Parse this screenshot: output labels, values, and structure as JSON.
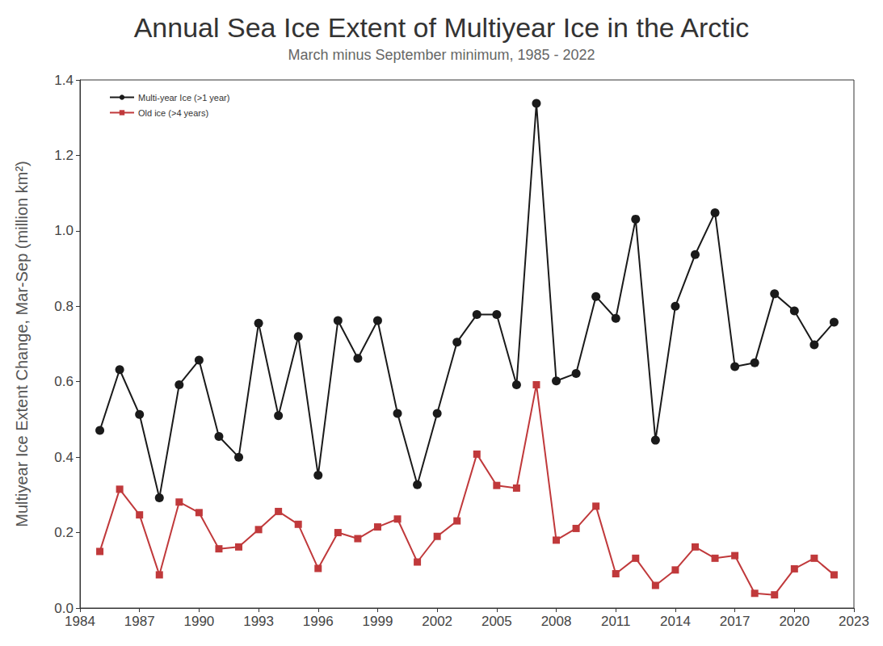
{
  "chart_data": {
    "type": "line",
    "title": "Annual Sea Ice Extent of Multiyear Ice in the Arctic",
    "subtitle": "March minus September minimum, 1985 - 2022",
    "y_label": "Multiyear Ice Extent Change, Mar-Sep (million km²)",
    "x": [
      1985,
      1986,
      1987,
      1988,
      1989,
      1990,
      1991,
      1992,
      1993,
      1994,
      1995,
      1996,
      1997,
      1998,
      1999,
      2000,
      2001,
      2002,
      2003,
      2004,
      2005,
      2006,
      2007,
      2008,
      2009,
      2010,
      2011,
      2012,
      2013,
      2014,
      2015,
      2016,
      2017,
      2018,
      2019,
      2020,
      2021,
      2022
    ],
    "series": [
      {
        "name": "Multi-year Ice (>1 year)",
        "color": "#1a1a1a",
        "marker": "circle",
        "line_style": "solid",
        "values": [
          0.471,
          0.632,
          0.513,
          0.292,
          0.592,
          0.657,
          0.455,
          0.4,
          0.755,
          0.51,
          0.72,
          0.352,
          0.762,
          0.662,
          0.762,
          0.516,
          0.327,
          0.516,
          0.705,
          0.778,
          0.778,
          0.592,
          1.338,
          0.602,
          0.622,
          0.826,
          0.768,
          1.031,
          0.445,
          0.8,
          0.937,
          1.048,
          0.64,
          0.65,
          0.833,
          0.788,
          0.698,
          0.758
        ]
      },
      {
        "name": "Old ice (>4 years)",
        "color": "#c0393b",
        "marker": "square",
        "line_style": "solid",
        "values": [
          0.15,
          0.315,
          0.247,
          0.088,
          0.281,
          0.253,
          0.157,
          0.162,
          0.208,
          0.256,
          0.222,
          0.105,
          0.2,
          0.184,
          0.215,
          0.236,
          0.122,
          0.19,
          0.231,
          0.408,
          0.325,
          0.318,
          0.592,
          0.18,
          0.211,
          0.27,
          0.091,
          0.132,
          0.06,
          0.101,
          0.162,
          0.132,
          0.139,
          0.039,
          0.035,
          0.104,
          0.132,
          0.088
        ]
      }
    ],
    "xlim": [
      1984,
      2023
    ],
    "xticks": [
      1984,
      1987,
      1990,
      1993,
      1996,
      1999,
      2002,
      2005,
      2008,
      2011,
      2014,
      2017,
      2020,
      2023
    ],
    "ylim": [
      0,
      1.4
    ],
    "yticks": [
      {
        "value": 0,
        "label": "0.0"
      },
      0.2,
      0.4,
      0.6,
      0.8,
      {
        "value": 1,
        "label": "1.0"
      },
      1.2,
      1.4
    ],
    "grid": false,
    "legend": "upper left"
  }
}
